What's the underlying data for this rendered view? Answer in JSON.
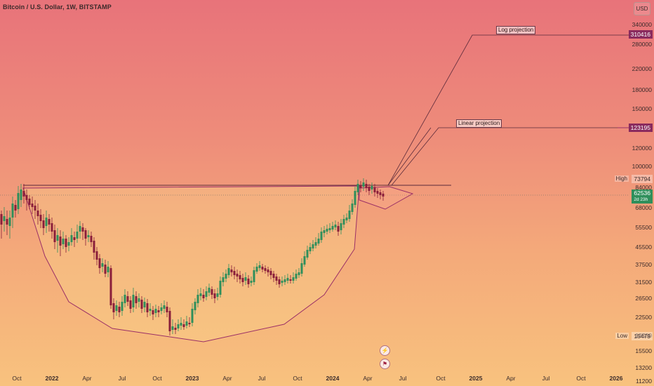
{
  "header": {
    "symbol_title": "Bitcoin / U.S. Dollar, 1W, BITSTAMP"
  },
  "currency_button": "USD",
  "price_axis": {
    "ticks": [
      "340000",
      "280000",
      "220000",
      "180000",
      "150000",
      "120000",
      "100000",
      "84000",
      "68000",
      "55500",
      "45500",
      "37500",
      "31500",
      "26500",
      "22500",
      "18500",
      "15500",
      "13200",
      "11200"
    ]
  },
  "time_axis": {
    "labels": [
      {
        "text": "Oct",
        "bold": false
      },
      {
        "text": "2022",
        "bold": true
      },
      {
        "text": "Apr",
        "bold": false
      },
      {
        "text": "Jul",
        "bold": false
      },
      {
        "text": "Oct",
        "bold": false
      },
      {
        "text": "2023",
        "bold": true
      },
      {
        "text": "Apr",
        "bold": false
      },
      {
        "text": "Jul",
        "bold": false
      },
      {
        "text": "Oct",
        "bold": false
      },
      {
        "text": "2024",
        "bold": true
      },
      {
        "text": "Apr",
        "bold": false
      },
      {
        "text": "Jul",
        "bold": false
      },
      {
        "text": "Oct",
        "bold": false
      },
      {
        "text": "2025",
        "bold": true
      },
      {
        "text": "Apr",
        "bold": false
      },
      {
        "text": "Jul",
        "bold": false
      },
      {
        "text": "Oct",
        "bold": false
      },
      {
        "text": "2026",
        "bold": true
      }
    ]
  },
  "price_tags": {
    "log_projection": "310416",
    "linear_projection": "123195",
    "high_label": "High",
    "high_value": "73794",
    "current_price": "62536",
    "current_sub": "2d 23h",
    "low_label": "Low",
    "low_value": "15479"
  },
  "annotations": {
    "log_projection": "Log projection",
    "linear_projection": "Linear projection"
  },
  "colors": {
    "bullish": "#2f8f5b",
    "bearish": "#8a1e3a",
    "drawing": "#9b2f66",
    "tag_purple": "#8a2a5e"
  },
  "icons": [
    "lightning-icon",
    "event-flag-icon"
  ]
}
